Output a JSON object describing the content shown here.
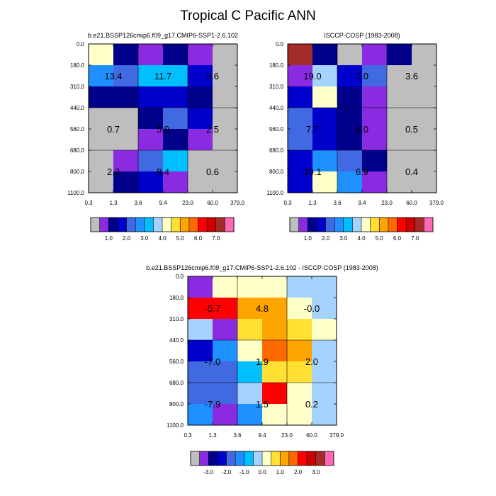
{
  "figure_title": "Tropical C Pacific ANN",
  "palette": {
    "gray": "#bebebe",
    "abs": [
      "#bebebe",
      "#8a2be2",
      "#00008b",
      "#0000cd",
      "#4169e1",
      "#1e90ff",
      "#00bfff",
      "#a4d3ff",
      "#ffffc8",
      "#ffe033",
      "#ffa500",
      "#ff6a00",
      "#ff0000",
      "#cd0000",
      "#a52a2a",
      "#ff69b4"
    ],
    "diff": [
      "#bebebe",
      "#8a2be2",
      "#00008b",
      "#0000cd",
      "#4169e1",
      "#1e90ff",
      "#00bfff",
      "#a4d3ff",
      "#ffffc8",
      "#ffe033",
      "#ffa500",
      "#ff6a00",
      "#ff0000",
      "#cd0000",
      "#a52a2a",
      "#ff69b4"
    ]
  },
  "chart_data": [
    {
      "type": "heatmap",
      "title": "b.e21.BSSP126cmip6.f09_g17.CMIP6-SSP1-2.6.102",
      "x_tick_labels": [
        "0.3",
        "1.3",
        "3.6",
        "9.4",
        "23.0",
        "60.0",
        "379.0"
      ],
      "y_tick_labels": [
        "0.0",
        "180.0",
        "310.0",
        "440.0",
        "560.0",
        "680.0",
        "800.0",
        "1100.0"
      ],
      "rows": [
        [
          "#ffffc8",
          "#00008b",
          "#8a2be2",
          "#00008b",
          "#8a2be2",
          "#bebebe"
        ],
        [
          "#1e90ff",
          "#4169e1",
          "#00bfff",
          "#00bfff",
          "#0000cd",
          "#bebebe"
        ],
        [
          "#00008b",
          "#00008b",
          "#0000cd",
          "#0000cd",
          "#00008b",
          "#bebebe"
        ],
        [
          "#bebebe",
          "#bebebe",
          "#00008b",
          "#4169e1",
          "#0000cd",
          "#bebebe"
        ],
        [
          "#bebebe",
          "#bebebe",
          "#8a2be2",
          "#00008b",
          "#8a2be2",
          "#bebebe"
        ],
        [
          "#bebebe",
          "#8a2be2",
          "#4169e1",
          "#00bfff",
          "#bebebe",
          "#bebebe"
        ],
        [
          "#bebebe",
          "#00008b",
          "#0000cd",
          "#8a2be2",
          "#bebebe",
          "#bebebe"
        ]
      ],
      "annotations": [
        {
          "text": "13.4",
          "x": 1.0,
          "y": 1.5
        },
        {
          "text": "11.7",
          "x": 3.0,
          "y": 1.5
        },
        {
          "text": "3.6",
          "x": 5.0,
          "y": 1.5
        },
        {
          "text": "0.7",
          "x": 1.0,
          "y": 4.0
        },
        {
          "text": "5.9",
          "x": 3.0,
          "y": 4.0
        },
        {
          "text": "2.5",
          "x": 5.0,
          "y": 4.0
        },
        {
          "text": "2.2",
          "x": 1.0,
          "y": 6.0
        },
        {
          "text": "8.4",
          "x": 3.0,
          "y": 6.0
        },
        {
          "text": "0.6",
          "x": 5.0,
          "y": 6.0
        }
      ],
      "colorbar": "abs",
      "colorbar_labels": [
        "1.0",
        "2.0",
        "3.0",
        "4.0",
        "5.0",
        "6.0",
        "7.0"
      ]
    },
    {
      "type": "heatmap",
      "title": "ISCCP-COSP (1983-2008)",
      "x_tick_labels": [
        "0.3",
        "1.3",
        "3.6",
        "9.4",
        "23.0",
        "60.0",
        "379.0"
      ],
      "y_tick_labels": [
        "0.0",
        "180.0",
        "310.0",
        "440.0",
        "560.0",
        "680.0",
        "800.0",
        "1100.0"
      ],
      "rows": [
        [
          "#a52a2a",
          "#00008b",
          "#bebebe",
          "#8a2be2",
          "#00008b",
          "#bebebe"
        ],
        [
          "#8a2be2",
          "#a4d3ff",
          "#0000cd",
          "#4169e1",
          "#bebebe",
          "#bebebe"
        ],
        [
          "#0000cd",
          "#ffffc8",
          "#00008b",
          "#8a2be2",
          "#bebebe",
          "#bebebe"
        ],
        [
          "#4169e1",
          "#0000cd",
          "#00008b",
          "#8a2be2",
          "#bebebe",
          "#bebebe"
        ],
        [
          "#4169e1",
          "#0000cd",
          "#00008b",
          "#8a2be2",
          "#bebebe",
          "#bebebe"
        ],
        [
          "#0000cd",
          "#1e90ff",
          "#4169e1",
          "#00008b",
          "#bebebe",
          "#bebebe"
        ],
        [
          "#0000cd",
          "#ffffc8",
          "#1e90ff",
          "#8a2be2",
          "#bebebe",
          "#bebebe"
        ]
      ],
      "annotations": [
        {
          "text": "19.0",
          "x": 1.0,
          "y": 1.5
        },
        {
          "text": "7.0",
          "x": 3.0,
          "y": 1.5
        },
        {
          "text": "3.6",
          "x": 5.0,
          "y": 1.5
        },
        {
          "text": "7.7",
          "x": 1.0,
          "y": 4.0
        },
        {
          "text": "4.0",
          "x": 3.0,
          "y": 4.0
        },
        {
          "text": "0.5",
          "x": 5.0,
          "y": 4.0
        },
        {
          "text": "10.1",
          "x": 1.0,
          "y": 6.0
        },
        {
          "text": "6.9",
          "x": 3.0,
          "y": 6.0
        },
        {
          "text": "0.4",
          "x": 5.0,
          "y": 6.0
        }
      ],
      "colorbar": "abs",
      "colorbar_labels": [
        "1.0",
        "2.0",
        "3.0",
        "4.0",
        "5.0",
        "6.0",
        "7.0"
      ]
    },
    {
      "type": "heatmap",
      "title": "b.e21.BSSP126cmip6.f09_g17.CMIP6-SSP1-2.6.102 - ISCCP-COSP (1983-2008)",
      "x_tick_labels": [
        "0.3",
        "1.3",
        "3.6",
        "9.4",
        "23.0",
        "60.0",
        "379.0"
      ],
      "y_tick_labels": [
        "0.0",
        "180.0",
        "310.0",
        "440.0",
        "560.0",
        "680.0",
        "800.0",
        "1100.0"
      ],
      "rows": [
        [
          "#8a2be2",
          "#ffffc8",
          "#ffffc8",
          "#ffffc8",
          "#a4d3ff",
          "#a4d3ff"
        ],
        [
          "#ff0000",
          "#ff0000",
          "#ffa500",
          "#ffa500",
          "#ffffc8",
          "#a4d3ff"
        ],
        [
          "#a4d3ff",
          "#8a2be2",
          "#ffe033",
          "#ffa500",
          "#ffe033",
          "#ffffc8"
        ],
        [
          "#0000cd",
          "#1e90ff",
          "#ffffc8",
          "#ff6a00",
          "#ffa500",
          "#a4d3ff"
        ],
        [
          "#4169e1",
          "#4169e1",
          "#00bfff",
          "#ffe033",
          "#ffe033",
          "#a4d3ff"
        ],
        [
          "#4169e1",
          "#4169e1",
          "#a4d3ff",
          "#ff0000",
          "#ffffc8",
          "#a4d3ff"
        ],
        [
          "#1e90ff",
          "#8a2be2",
          "#1e90ff",
          "#ffffc8",
          "#ffffc8",
          "#a4d3ff"
        ]
      ],
      "annotations": [
        {
          "text": "-5.7",
          "x": 1.0,
          "y": 1.5
        },
        {
          "text": "4.8",
          "x": 3.0,
          "y": 1.5
        },
        {
          "text": "-0.0",
          "x": 5.0,
          "y": 1.5
        },
        {
          "text": "-7.0",
          "x": 1.0,
          "y": 4.0
        },
        {
          "text": "1.9",
          "x": 3.0,
          "y": 4.0
        },
        {
          "text": "2.0",
          "x": 5.0,
          "y": 4.0
        },
        {
          "text": "-7.9",
          "x": 1.0,
          "y": 6.0
        },
        {
          "text": "1.5",
          "x": 3.0,
          "y": 6.0
        },
        {
          "text": "0.2",
          "x": 5.0,
          "y": 6.0
        }
      ],
      "colorbar": "diff",
      "colorbar_labels": [
        "-3.0",
        "-2.0",
        "-1.0",
        "0.0",
        "1.0",
        "2.0",
        "3.0"
      ]
    }
  ]
}
